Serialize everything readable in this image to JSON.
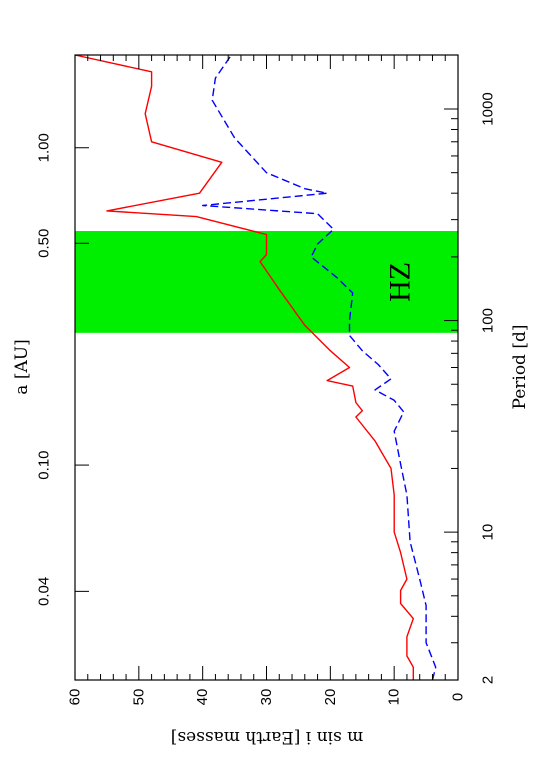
{
  "chart_data": {
    "type": "line",
    "orientation": "rotated-90",
    "xlabel": "Period [d]",
    "top_xlabel": "a [AU]",
    "ylabel": "m sin i [Earth masses]",
    "xscale": "log",
    "xlim": [
      2,
      1800
    ],
    "ylim": [
      0,
      60
    ],
    "x_ticks": [
      {
        "label": "2",
        "value": 2
      },
      {
        "label": "10",
        "value": 10
      },
      {
        "label": "100",
        "value": 100
      },
      {
        "label": "1000",
        "value": 1000
      }
    ],
    "top_ticks": [
      {
        "label": "0.04",
        "value": 0.04
      },
      {
        "label": "0.10",
        "value": 0.1
      },
      {
        "label": "0.50",
        "value": 0.5
      },
      {
        "label": "1.00",
        "value": 1.0
      }
    ],
    "y_ticks": [
      {
        "label": "0",
        "value": 0
      },
      {
        "label": "10",
        "value": 10
      },
      {
        "label": "20",
        "value": 20
      },
      {
        "label": "30",
        "value": 30
      },
      {
        "label": "40",
        "value": 40
      },
      {
        "label": "50",
        "value": 50
      },
      {
        "label": "60",
        "value": 60
      }
    ],
    "region": {
      "label": "HZ",
      "x_start": 87.5,
      "x_end": 265,
      "color": "#00ee00"
    },
    "series": [
      {
        "color": "#ff0000",
        "style": "solid",
        "points": [
          [
            2,
            7
          ],
          [
            2.3,
            7
          ],
          [
            2.6,
            8
          ],
          [
            3.2,
            8
          ],
          [
            3.9,
            7
          ],
          [
            4.6,
            9
          ],
          [
            5.3,
            9
          ],
          [
            6,
            8
          ],
          [
            8,
            9
          ],
          [
            10,
            10
          ],
          [
            15,
            10
          ],
          [
            20,
            10.5
          ],
          [
            27,
            13
          ],
          [
            35,
            16
          ],
          [
            37.5,
            15
          ],
          [
            41,
            16
          ],
          [
            49,
            16.5
          ],
          [
            52,
            20.5
          ],
          [
            60,
            17
          ],
          [
            72,
            20
          ],
          [
            95,
            24
          ],
          [
            140,
            28
          ],
          [
            190,
            31
          ],
          [
            205,
            30
          ],
          [
            255,
            30
          ],
          [
            310,
            41
          ],
          [
            330,
            55
          ],
          [
            400,
            40.5
          ],
          [
            560,
            37
          ],
          [
            700,
            48
          ],
          [
            950,
            49
          ],
          [
            1280,
            48
          ],
          [
            1500,
            48
          ],
          [
            1800,
            60
          ]
        ]
      },
      {
        "color": "#0000ff",
        "style": "dashed",
        "points": [
          [
            2,
            4
          ],
          [
            2.3,
            3.5
          ],
          [
            3,
            5
          ],
          [
            4.5,
            5
          ],
          [
            6,
            6
          ],
          [
            9,
            7.5
          ],
          [
            15,
            8
          ],
          [
            21,
            9
          ],
          [
            30,
            10
          ],
          [
            37,
            8.5
          ],
          [
            42,
            10
          ],
          [
            47,
            13
          ],
          [
            53,
            10.5
          ],
          [
            62,
            12.5
          ],
          [
            72,
            15
          ],
          [
            85,
            17
          ],
          [
            100,
            17
          ],
          [
            135,
            16.5
          ],
          [
            160,
            19
          ],
          [
            200,
            23
          ],
          [
            230,
            22
          ],
          [
            270,
            19.5
          ],
          [
            320,
            22
          ],
          [
            350,
            40
          ],
          [
            400,
            20.5
          ],
          [
            420,
            24
          ],
          [
            500,
            30
          ],
          [
            730,
            35
          ],
          [
            1100,
            38.5
          ],
          [
            1400,
            38
          ],
          [
            1800,
            35.5
          ]
        ]
      }
    ]
  }
}
